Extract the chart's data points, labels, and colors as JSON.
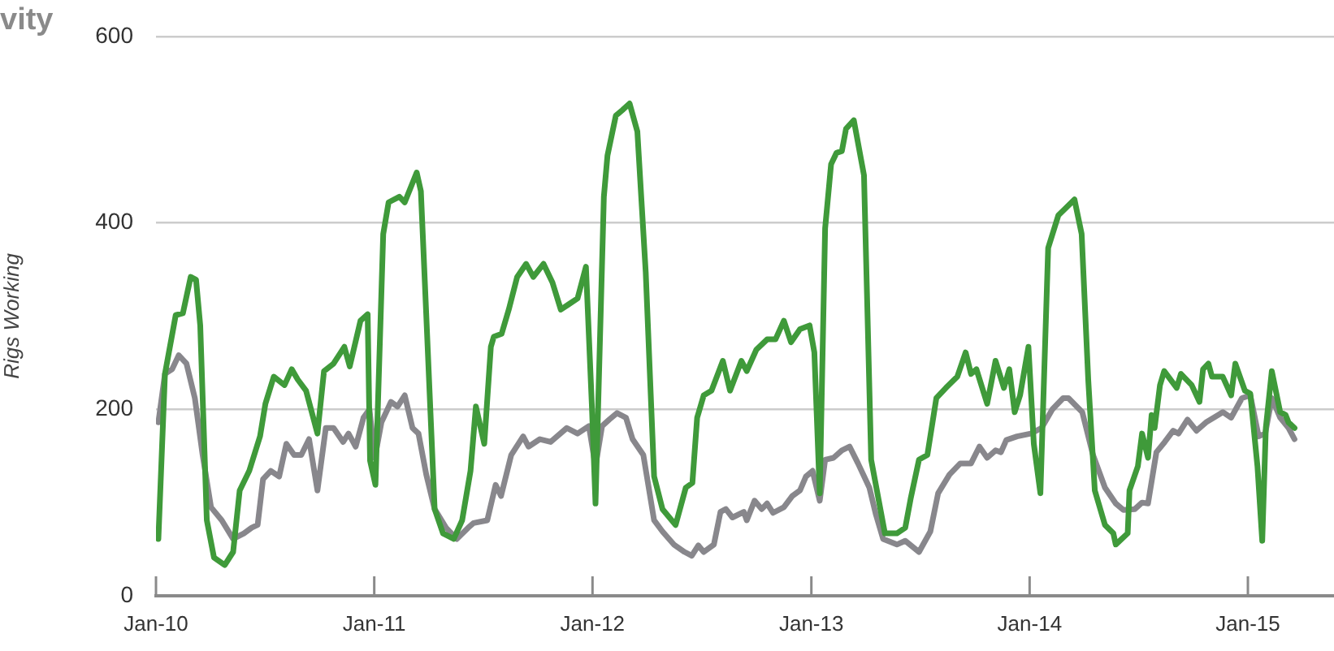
{
  "chart_data": {
    "type": "line",
    "title": "vity",
    "ylabel": "Rigs Working",
    "xlim": [
      "2010-01-01",
      "2015-05-25"
    ],
    "xticks": [
      {
        "value": "2010-01-01",
        "label": "Jan-10"
      },
      {
        "value": "2011-01-01",
        "label": "Jan-11"
      },
      {
        "value": "2012-01-01",
        "label": "Jan-12"
      },
      {
        "value": "2013-01-01",
        "label": "Jan-13"
      },
      {
        "value": "2014-01-01",
        "label": "Jan-14"
      },
      {
        "value": "2015-01-01",
        "label": "Jan-15"
      }
    ],
    "ylim": [
      0,
      600
    ],
    "yticks": [
      0,
      200,
      400,
      600
    ],
    "grid": "y",
    "legend": false,
    "marker": "none",
    "line_style": "solid",
    "series": [
      {
        "color": "#3f9a3a",
        "x": [
          "2010-01-05",
          "2010-01-16",
          "2010-02-03",
          "2010-02-15",
          "2010-02-28",
          "2010-03-09",
          "2010-03-16",
          "2010-03-27",
          "2010-04-08",
          "2010-04-26",
          "2010-05-10",
          "2010-05-21",
          "2010-06-06",
          "2010-06-24",
          "2010-07-03",
          "2010-07-17",
          "2010-08-04",
          "2010-08-16",
          "2010-08-26",
          "2010-09-09",
          "2010-09-28",
          "2010-10-09",
          "2010-10-25",
          "2010-11-12",
          "2010-11-21",
          "2010-12-09",
          "2010-12-21",
          "2010-12-25",
          "2011-01-03",
          "2011-01-16",
          "2011-01-25",
          "2011-02-12",
          "2011-02-21",
          "2011-03-13",
          "2011-03-20",
          "2011-03-29",
          "2011-04-12",
          "2011-04-26",
          "2011-05-14",
          "2011-05-28",
          "2011-06-11",
          "2011-06-20",
          "2011-07-04",
          "2011-07-15",
          "2011-07-20",
          "2011-08-02",
          "2011-08-14",
          "2011-08-28",
          "2011-09-12",
          "2011-09-24",
          "2011-10-11",
          "2011-10-26",
          "2011-11-09",
          "2011-11-23",
          "2011-12-07",
          "2011-12-21",
          "2011-12-31",
          "2012-01-06",
          "2012-01-20",
          "2012-01-26",
          "2012-02-09",
          "2012-02-20",
          "2012-03-03",
          "2012-03-16",
          "2012-03-30",
          "2012-04-13",
          "2012-04-27",
          "2012-05-19",
          "2012-06-05",
          "2012-06-16",
          "2012-06-24",
          "2012-07-05",
          "2012-07-18",
          "2012-08-06",
          "2012-08-18",
          "2012-09-06",
          "2012-09-15",
          "2012-10-01",
          "2012-10-19",
          "2012-11-02",
          "2012-11-16",
          "2012-11-28",
          "2012-12-13",
          "2012-12-29",
          "2013-01-06",
          "2013-01-15",
          "2013-01-24",
          "2013-02-03",
          "2013-02-12",
          "2013-02-21",
          "2013-02-28",
          "2013-03-13",
          "2013-03-30",
          "2013-04-11",
          "2013-05-04",
          "2013-05-24",
          "2013-06-07",
          "2013-06-16",
          "2013-06-30",
          "2013-07-14",
          "2013-07-29",
          "2013-08-14",
          "2013-09-02",
          "2013-09-16",
          "2013-09-25",
          "2013-10-04",
          "2013-10-22",
          "2013-11-05",
          "2013-11-19",
          "2013-11-28",
          "2013-12-07",
          "2013-12-16",
          "2013-12-30",
          "2014-01-08",
          "2014-01-19",
          "2014-02-01",
          "2014-02-18",
          "2014-03-17",
          "2014-03-29",
          "2014-04-09",
          "2014-04-20",
          "2014-05-07",
          "2014-05-21",
          "2014-05-25",
          "2014-06-14",
          "2014-06-17",
          "2014-07-01",
          "2014-07-08",
          "2014-07-18",
          "2014-07-24",
          "2014-07-29",
          "2014-08-07",
          "2014-08-14",
          "2014-09-04",
          "2014-09-11",
          "2014-09-29",
          "2014-10-12",
          "2014-10-18",
          "2014-10-27",
          "2014-11-02",
          "2014-11-20",
          "2014-12-04",
          "2014-12-11",
          "2014-12-27",
          "2015-01-05",
          "2015-01-17",
          "2015-01-25",
          "2015-01-31",
          "2015-02-10",
          "2015-02-24",
          "2015-03-05",
          "2015-03-10",
          "2015-03-20"
        ],
        "values": [
          61,
          238,
          301,
          303,
          342,
          339,
          290,
          81,
          41,
          33,
          47,
          113,
          134,
          171,
          206,
          235,
          226,
          243,
          232,
          220,
          174,
          241,
          249,
          267,
          246,
          295,
          302,
          145,
          119,
          388,
          422,
          428,
          422,
          454,
          434,
          301,
          93,
          67,
          61,
          81,
          134,
          203,
          163,
          267,
          278,
          281,
          307,
          342,
          356,
          342,
          356,
          336,
          307,
          313,
          319,
          353,
          203,
          99,
          428,
          472,
          515,
          521,
          528,
          498,
          347,
          128,
          93,
          76,
          116,
          121,
          191,
          215,
          220,
          252,
          220,
          252,
          241,
          264,
          275,
          275,
          295,
          272,
          286,
          290,
          261,
          110,
          394,
          463,
          475,
          477,
          501,
          510,
          451,
          146,
          67,
          67,
          73,
          104,
          146,
          151,
          212,
          223,
          235,
          261,
          238,
          243,
          206,
          252,
          223,
          243,
          197,
          215,
          267,
          163,
          110,
          373,
          408,
          425,
          388,
          232,
          113,
          76,
          67,
          55,
          67,
          113,
          139,
          174,
          148,
          194,
          180,
          226,
          241,
          223,
          238,
          226,
          208,
          243,
          249,
          235,
          235,
          215,
          249,
          220,
          217,
          139,
          59,
          180,
          241,
          197,
          194,
          186,
          180
        ]
      },
      {
        "color": "#88878c",
        "x": [
          "2010-01-05",
          "2010-01-16",
          "2010-01-28",
          "2010-02-08",
          "2010-02-21",
          "2010-03-07",
          "2010-03-20",
          "2010-04-03",
          "2010-04-21",
          "2010-05-10",
          "2010-05-28",
          "2010-06-10",
          "2010-06-20",
          "2010-06-29",
          "2010-07-12",
          "2010-07-26",
          "2010-08-07",
          "2010-08-20",
          "2010-09-01",
          "2010-09-14",
          "2010-09-28",
          "2010-10-12",
          "2010-10-25",
          "2010-11-10",
          "2010-11-19",
          "2010-12-01",
          "2010-12-14",
          "2010-12-24",
          "2011-01-02",
          "2011-01-13",
          "2011-01-29",
          "2011-02-09",
          "2011-02-21",
          "2011-03-06",
          "2011-03-16",
          "2011-03-29",
          "2011-04-12",
          "2011-05-01",
          "2011-05-19",
          "2011-06-07",
          "2011-06-16",
          "2011-07-09",
          "2011-07-23",
          "2011-08-01",
          "2011-08-18",
          "2011-09-07",
          "2011-09-16",
          "2011-10-05",
          "2011-10-23",
          "2011-11-19",
          "2011-12-07",
          "2011-12-26",
          "2012-01-06",
          "2012-01-17",
          "2012-01-29",
          "2012-02-11",
          "2012-02-26",
          "2012-03-08",
          "2012-03-26",
          "2012-04-13",
          "2012-04-27",
          "2012-05-16",
          "2012-06-03",
          "2012-06-15",
          "2012-06-26",
          "2012-07-05",
          "2012-07-22",
          "2012-08-02",
          "2012-08-11",
          "2012-08-22",
          "2012-09-10",
          "2012-09-15",
          "2012-09-28",
          "2012-10-10",
          "2012-10-19",
          "2012-10-29",
          "2012-11-16",
          "2012-11-30",
          "2012-12-13",
          "2012-12-23",
          "2013-01-03",
          "2013-01-15",
          "2013-01-24",
          "2013-02-07",
          "2013-02-21",
          "2013-03-06",
          "2013-03-20",
          "2013-04-08",
          "2013-04-19",
          "2013-05-01",
          "2013-05-24",
          "2013-06-07",
          "2013-06-30",
          "2013-07-19",
          "2013-08-01",
          "2013-08-20",
          "2013-09-07",
          "2013-09-25",
          "2013-10-09",
          "2013-10-22",
          "2013-11-05",
          "2013-11-14",
          "2013-11-23",
          "2013-12-11",
          "2014-01-03",
          "2014-01-21",
          "2014-02-08",
          "2014-02-26",
          "2014-03-07",
          "2014-03-30",
          "2014-04-17",
          "2014-05-07",
          "2014-05-25",
          "2014-06-07",
          "2014-06-26",
          "2014-07-08",
          "2014-07-18",
          "2014-08-01",
          "2014-08-15",
          "2014-08-29",
          "2014-09-07",
          "2014-09-22",
          "2014-10-07",
          "2014-10-23",
          "2014-11-05",
          "2014-11-20",
          "2014-12-04",
          "2014-12-22",
          "2015-01-05",
          "2015-01-19",
          "2015-01-30",
          "2015-02-10",
          "2015-02-24",
          "2015-03-10",
          "2015-03-20"
        ],
        "values": [
          186,
          238,
          243,
          258,
          249,
          212,
          151,
          95,
          81,
          61,
          67,
          73,
          76,
          125,
          134,
          128,
          163,
          151,
          151,
          168,
          113,
          180,
          180,
          165,
          174,
          160,
          191,
          200,
          148,
          186,
          208,
          203,
          215,
          180,
          174,
          130,
          93,
          73,
          61,
          73,
          78,
          81,
          119,
          107,
          151,
          171,
          160,
          168,
          165,
          180,
          174,
          182,
          139,
          182,
          189,
          196,
          191,
          168,
          151,
          81,
          69,
          55,
          47,
          43,
          54,
          47,
          55,
          90,
          93,
          84,
          90,
          81,
          102,
          93,
          99,
          89,
          95,
          107,
          113,
          128,
          134,
          102,
          146,
          148,
          156,
          160,
          142,
          116,
          87,
          61,
          55,
          59,
          47,
          69,
          110,
          130,
          142,
          142,
          160,
          148,
          156,
          154,
          167,
          171,
          174,
          180,
          200,
          212,
          212,
          197,
          151,
          116,
          99,
          92,
          93,
          100,
          99,
          154,
          165,
          177,
          174,
          189,
          177,
          186,
          191,
          197,
          191,
          212,
          215,
          171,
          174,
          212,
          191,
          180,
          168
        ]
      }
    ]
  }
}
